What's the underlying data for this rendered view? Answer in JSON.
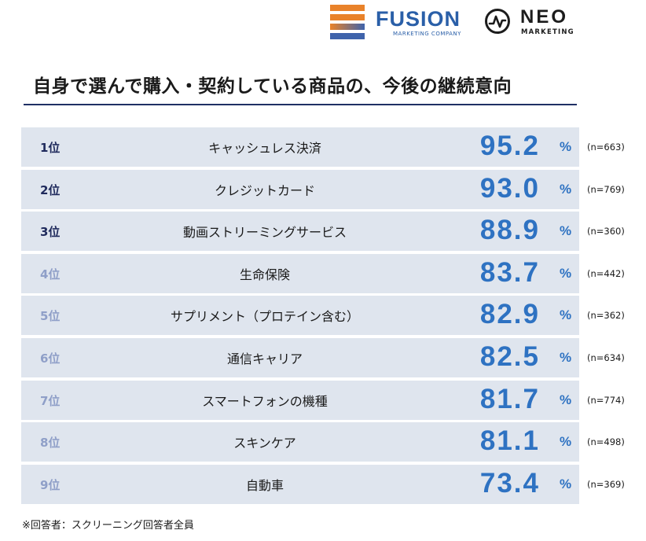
{
  "logos": {
    "fusion": {
      "name": "FUSION",
      "sub": "MARKETING COMPANY",
      "icon": "fusion-stripes-icon",
      "stripe_colors": [
        "#e9822a",
        "#8b8bb0",
        "#3f63ab"
      ]
    },
    "neo": {
      "name": "NEO",
      "sub": "MARKETING",
      "icon": "neo-pulse-circle-icon"
    }
  },
  "footnote": "※回答者：スクリーニング回答者全員",
  "colors": {
    "rank_dark": "#1f2a5c",
    "rank_light": "#8f9fc8",
    "value": "#2e72c2",
    "band": "#dfe5ee",
    "rule": "#1f3064"
  },
  "chart_data": {
    "type": "table",
    "title": "自身で選んで購入・契約している商品の、今後の継続意向",
    "unit": "%",
    "rows": [
      {
        "rank": "1位",
        "label": "キャッシュレス決済",
        "value": "95.2",
        "n": "(n=663)"
      },
      {
        "rank": "2位",
        "label": "クレジットカード",
        "value": "93.0",
        "n": "(n=769)"
      },
      {
        "rank": "3位",
        "label": "動画ストリーミングサービス",
        "value": "88.9",
        "n": "(n=360)"
      },
      {
        "rank": "4位",
        "label": "生命保険",
        "value": "83.7",
        "n": "(n=442)"
      },
      {
        "rank": "5位",
        "label": "サプリメント（プロテイン含む）",
        "value": "82.9",
        "n": "(n=362)"
      },
      {
        "rank": "6位",
        "label": "通信キャリア",
        "value": "82.5",
        "n": "(n=634)"
      },
      {
        "rank": "7位",
        "label": "スマートフォンの機種",
        "value": "81.7",
        "n": "(n=774)"
      },
      {
        "rank": "8位",
        "label": "スキンケア",
        "value": "81.1",
        "n": "(n=498)"
      },
      {
        "rank": "9位",
        "label": "自動車",
        "value": "73.4",
        "n": "(n=369)"
      }
    ]
  }
}
